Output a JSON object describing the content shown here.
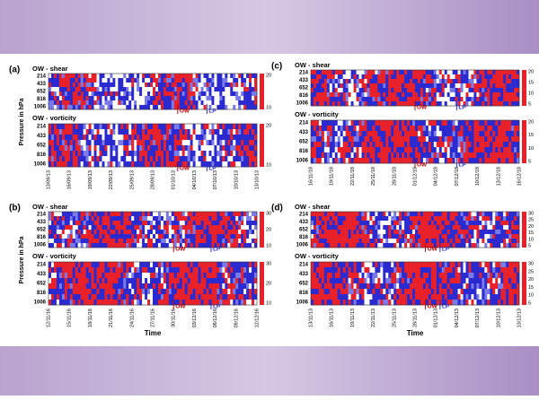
{
  "panels": [
    {
      "label": "(a)",
      "y_label": "Pressure in hPa",
      "yticks": [
        "214",
        "433",
        "652",
        "816",
        "1006"
      ],
      "xticks": [
        "13/09/13",
        "16/09/13",
        "19/09/13",
        "22/09/13",
        "25/09/13",
        "28/09/13",
        "01/10/13",
        "04/10/13",
        "07/10/13",
        "10/10/13",
        "13/10/13"
      ],
      "subplots": [
        {
          "title": "OW - shear",
          "colorbar": [
            "20",
            "10"
          ],
          "annotations": [
            "OW",
            "LP"
          ]
        },
        {
          "title": "OW - vorticity",
          "colorbar": [
            "20",
            "10"
          ],
          "annotations": [
            "OW",
            "LP"
          ]
        }
      ]
    },
    {
      "label": "(c)",
      "yticks": [
        "214",
        "433",
        "652",
        "816",
        "1006"
      ],
      "xticks": [
        "16/11/18",
        "19/11/18",
        "22/11/18",
        "25/11/18",
        "28/11/18",
        "01/12/18",
        "04/12/18",
        "07/12/18",
        "10/12/18",
        "13/12/18",
        "16/12/18"
      ],
      "subplots": [
        {
          "title": "OW - shear",
          "colorbar": [
            "20",
            "15",
            "10",
            "5"
          ],
          "annotations": [
            "OW",
            "LP"
          ]
        },
        {
          "title": "OW - vorticity",
          "colorbar": [
            "20",
            "15",
            "10",
            "5"
          ],
          "annotations": [
            "OW",
            "LP"
          ]
        }
      ]
    },
    {
      "label": "(b)",
      "y_label": "Pressure in hPa",
      "x_label": "Time",
      "yticks": [
        "214",
        "433",
        "652",
        "816",
        "1006"
      ],
      "xticks": [
        "12/11/16",
        "15/11/16",
        "18/11/16",
        "21/11/16",
        "24/11/16",
        "27/11/16",
        "30/11/16",
        "03/12/16",
        "06/12/16",
        "09/12/16",
        "12/12/16"
      ],
      "subplots": [
        {
          "title": "OW - shear",
          "colorbar": [
            "30",
            "20",
            "10"
          ],
          "annotations": [
            "OW",
            "LP"
          ]
        },
        {
          "title": "OW - vorticity",
          "colorbar": [
            "30",
            "20",
            "10"
          ],
          "annotations": [
            "OW",
            "LP"
          ]
        }
      ]
    },
    {
      "label": "(d)",
      "x_label": "Time",
      "yticks": [
        "214",
        "433",
        "652",
        "816",
        "1006"
      ],
      "xticks": [
        "13/11/13",
        "16/11/13",
        "19/11/13",
        "22/11/13",
        "25/11/13",
        "28/11/13",
        "01/12/13",
        "04/12/13",
        "07/12/13",
        "10/12/13",
        "13/12/13"
      ],
      "subplots": [
        {
          "title": "OW - shear",
          "colorbar": [
            "30",
            "25",
            "20",
            "15",
            "10",
            "5"
          ],
          "annotations": [
            "OW",
            "LP"
          ]
        },
        {
          "title": "OW - vorticity",
          "colorbar": [
            "30",
            "25",
            "20",
            "15",
            "10",
            "5"
          ],
          "annotations": [
            "OW",
            "LP"
          ]
        }
      ]
    }
  ]
}
